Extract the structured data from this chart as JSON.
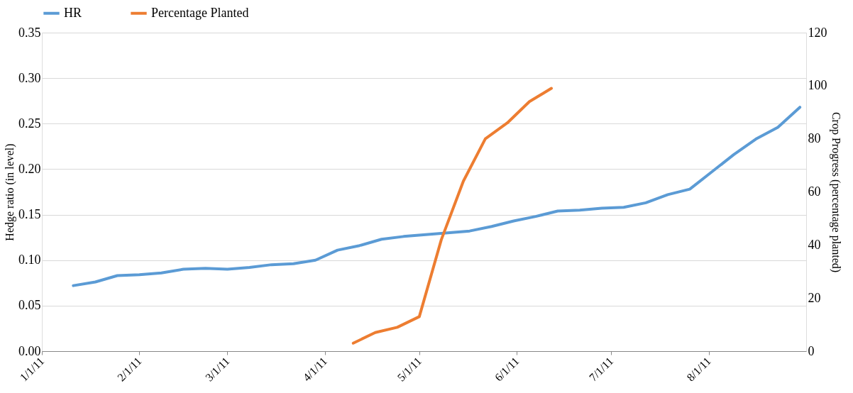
{
  "chart_data": {
    "type": "line",
    "ylabel": "Hedge ratio (in level)",
    "y2label": "Crop Progress (percentage planted)",
    "series": [
      {
        "name": "HR",
        "color": "#5b9bd5",
        "x": [
          "2011-01-11",
          "2011-01-18",
          "2011-01-25",
          "2011-02-01",
          "2011-02-08",
          "2011-02-15",
          "2011-02-22",
          "2011-03-01",
          "2011-03-08",
          "2011-03-15",
          "2011-03-22",
          "2011-03-29",
          "2011-04-05",
          "2011-04-12",
          "2011-04-19",
          "2011-04-26",
          "2011-05-03",
          "2011-05-10",
          "2011-05-17",
          "2011-05-24",
          "2011-05-31",
          "2011-06-07",
          "2011-06-14",
          "2011-06-21",
          "2011-06-28",
          "2011-07-05",
          "2011-07-12",
          "2011-07-19",
          "2011-07-26",
          "2011-08-02",
          "2011-08-09",
          "2011-08-16",
          "2011-08-23",
          "2011-08-30"
        ],
        "values": [
          0.072,
          0.076,
          0.083,
          0.084,
          0.086,
          0.09,
          0.091,
          0.09,
          0.092,
          0.095,
          0.096,
          0.1,
          0.111,
          0.116,
          0.123,
          0.126,
          0.128,
          0.13,
          0.132,
          0.137,
          0.143,
          0.148,
          0.154,
          0.155,
          0.157,
          0.158,
          0.163,
          0.172,
          0.178,
          0.197,
          0.216,
          0.233,
          0.246,
          0.268
        ]
      },
      {
        "name": "Percentage Planted",
        "color": "#ed7d31",
        "axis": "y2",
        "x": [
          "2011-04-10",
          "2011-04-17",
          "2011-04-24",
          "2011-05-01",
          "2011-05-08",
          "2011-05-15",
          "2011-05-22",
          "2011-05-29",
          "2011-06-05",
          "2011-06-12"
        ],
        "values": [
          3,
          7,
          9,
          13,
          42,
          64,
          80,
          86,
          94,
          99
        ]
      }
    ],
    "xlim": [
      "2011-01-01",
      "2011-09-01"
    ],
    "xticks": [
      {
        "value": "2011-01-01",
        "label": "1/1/11"
      },
      {
        "value": "2011-02-01",
        "label": "2/1/11"
      },
      {
        "value": "2011-03-01",
        "label": "3/1/11"
      },
      {
        "value": "2011-04-01",
        "label": "4/1/11"
      },
      {
        "value": "2011-05-01",
        "label": "5/1/11"
      },
      {
        "value": "2011-06-01",
        "label": "6/1/11"
      },
      {
        "value": "2011-07-01",
        "label": "7/1/11"
      },
      {
        "value": "2011-08-01",
        "label": "8/1/11"
      }
    ],
    "ylim": [
      0,
      0.35
    ],
    "yticks": [
      {
        "value": 0,
        "label": "0.00"
      },
      {
        "value": 0.05,
        "label": "0.05"
      },
      {
        "value": 0.1,
        "label": "0.10"
      },
      {
        "value": 0.15,
        "label": "0.15"
      },
      {
        "value": 0.2,
        "label": "0.20"
      },
      {
        "value": 0.25,
        "label": "0.25"
      },
      {
        "value": 0.3,
        "label": "0.30"
      },
      {
        "value": 0.35,
        "label": "0.35"
      }
    ],
    "y2lim": [
      0,
      120
    ],
    "y2ticks": [
      0,
      20,
      40,
      60,
      80,
      100,
      120
    ],
    "grid": "y",
    "legend": "top left",
    "line_style": "solid",
    "marker": "none"
  }
}
